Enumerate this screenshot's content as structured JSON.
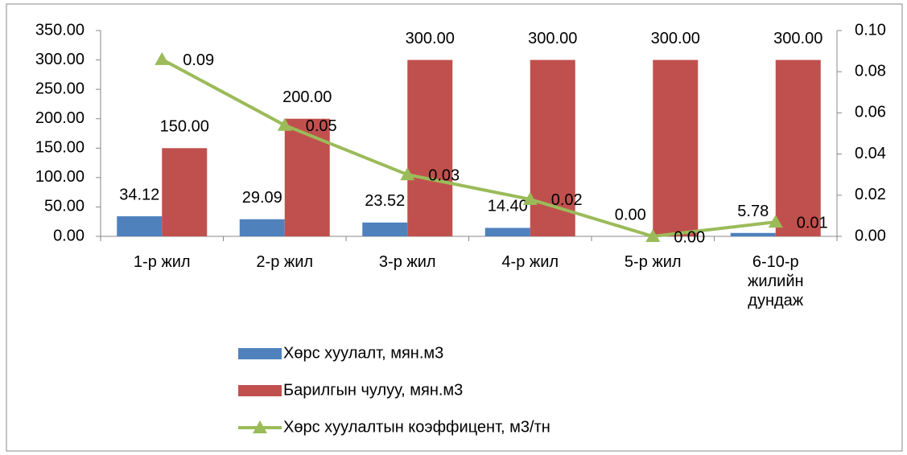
{
  "chart_data": {
    "type": "bar_line",
    "categories": [
      "1-р жил",
      "2-р жил",
      "3-р жил",
      "4-р жил",
      "5-р жил",
      "6-10-р жилийн дундаж"
    ],
    "series": [
      {
        "name": "Хөрс хуулалт, мян.м3",
        "color": "#4f81bd",
        "values": [
          34.12,
          29.09,
          23.52,
          14.4,
          0,
          5.78
        ],
        "value_labels": [
          "34.12",
          "29.09",
          "23.52",
          "14.40",
          "0.00",
          "5.78"
        ]
      },
      {
        "name": "Барилгын чулуу, мян.м3",
        "color": "#c0504d",
        "values": [
          150,
          200,
          300,
          300,
          300,
          300
        ],
        "value_labels": [
          "150.00",
          "200.00",
          "300.00",
          "300.00",
          "300.00",
          "300.00"
        ]
      },
      {
        "name": "Хөрс хуулалтын коэффицент, м3/тн",
        "color": "#9bbb59",
        "axis": "y2",
        "values": [
          0.086,
          0.054,
          0.03,
          0.018,
          0,
          0.007
        ],
        "value_labels": [
          "0.09",
          "0.05",
          "0.03",
          "0.02",
          "0.00",
          "0.01"
        ]
      }
    ],
    "ylim": [
      0,
      350
    ],
    "yticks": [
      {
        "value": 0,
        "label": "0.00"
      },
      {
        "value": 50,
        "label": "50.00"
      },
      {
        "value": 100,
        "label": "100.00"
      },
      {
        "value": 150,
        "label": "150.00"
      },
      {
        "value": 200,
        "label": "200.00"
      },
      {
        "value": 250,
        "label": "250.00"
      },
      {
        "value": 300,
        "label": "300.00"
      },
      {
        "value": 350,
        "label": "350.00"
      }
    ],
    "y2lim": [
      0,
      0.1
    ],
    "y2ticks": [
      {
        "value": 0,
        "label": "0.00"
      },
      {
        "value": 0.02,
        "label": "0.02"
      },
      {
        "value": 0.04,
        "label": "0.04"
      },
      {
        "value": 0.06,
        "label": "0.06"
      },
      {
        "value": 0.08,
        "label": "0.08"
      },
      {
        "value": 0.1,
        "label": "0.10"
      }
    ],
    "grid": false,
    "legend": "bottom"
  }
}
